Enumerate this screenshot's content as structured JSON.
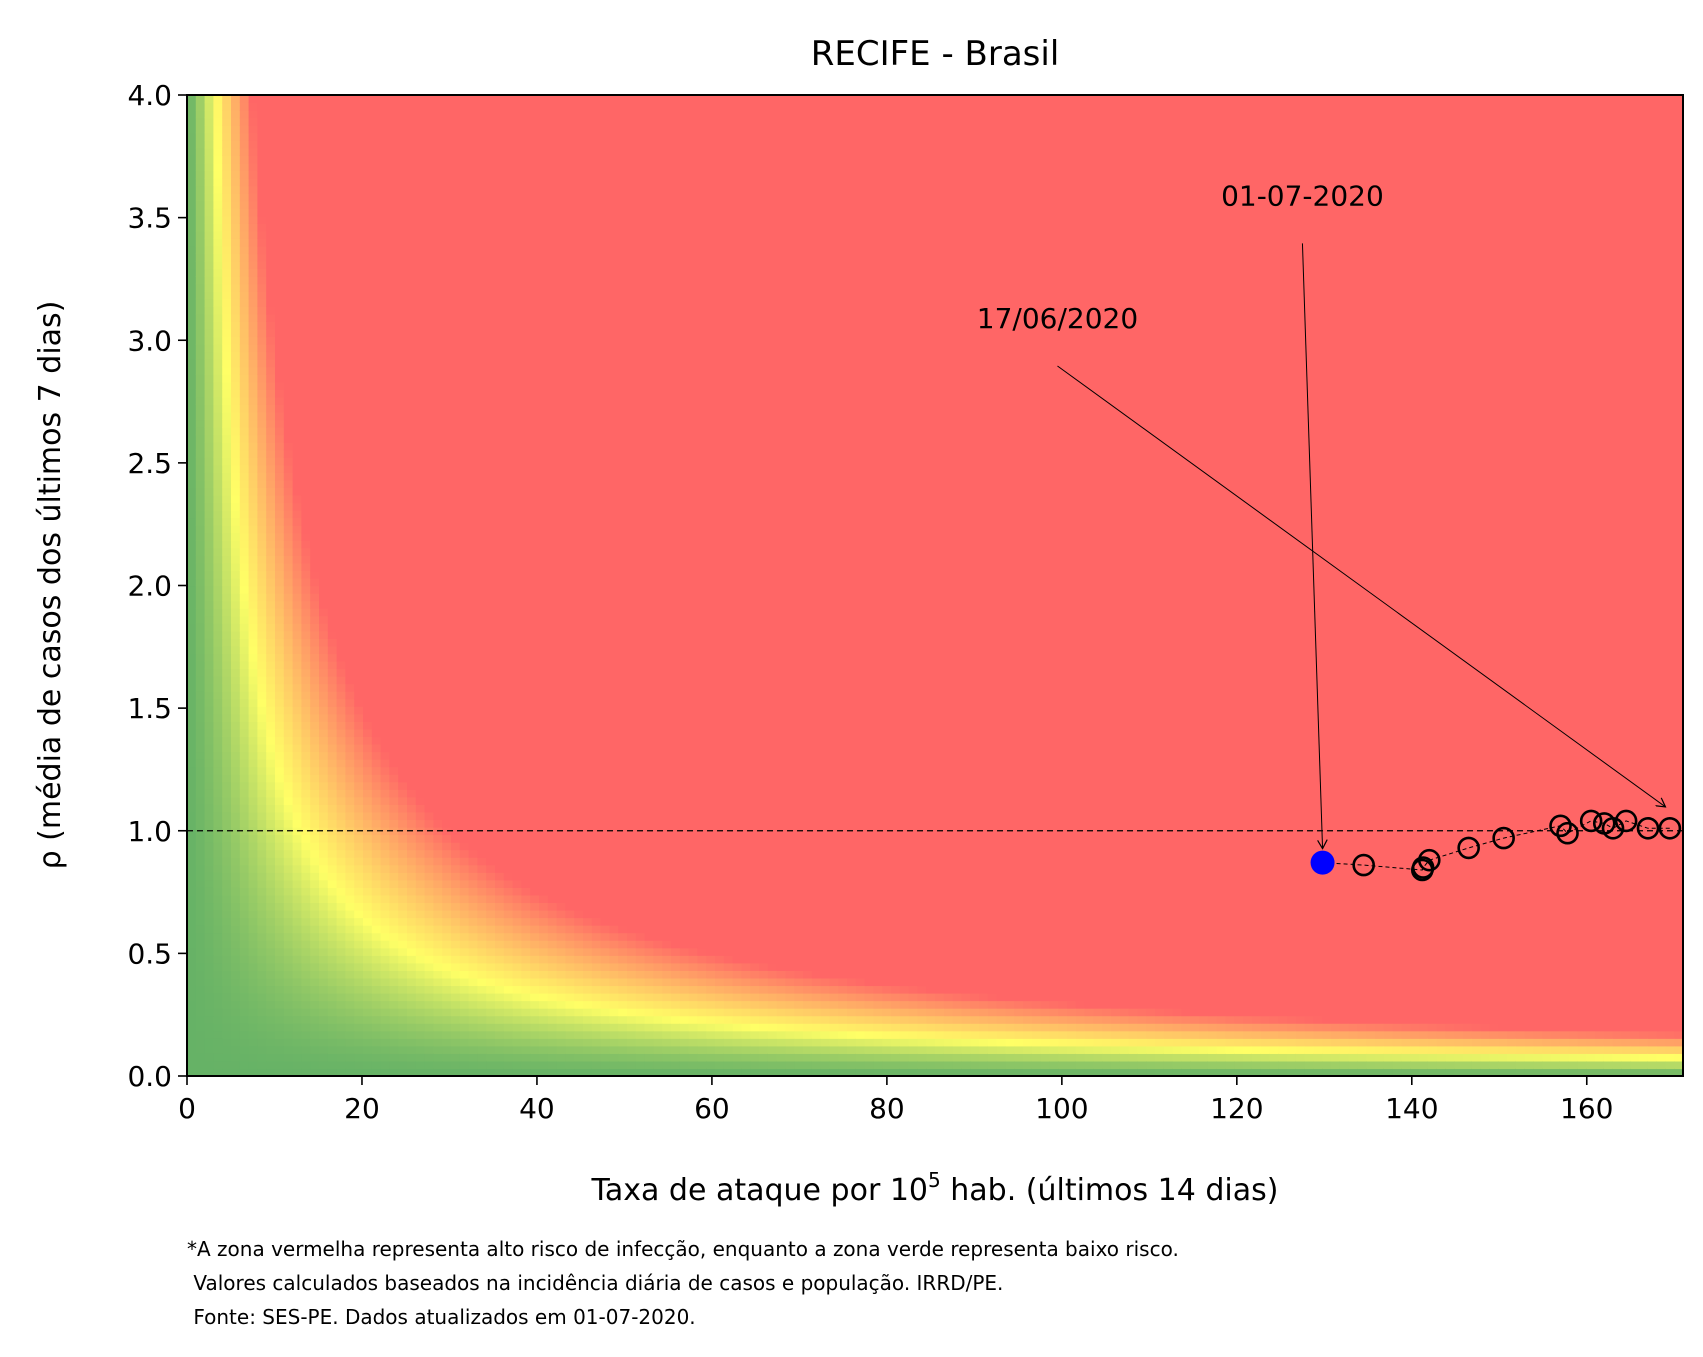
{
  "chart_data": {
    "type": "scatter",
    "title": "RECIFE - Brasil",
    "xlabel_prefix": "Taxa de ataque por 10",
    "xlabel_sup": "5",
    "xlabel_suffix": " hab. (últimos 14 dias)",
    "ylabel": "ρ (média de casos dos últimos 7 dias)",
    "xlim": [
      0,
      171
    ],
    "ylim": [
      0,
      4.0
    ],
    "xticks": [
      0,
      20,
      40,
      60,
      80,
      100,
      120,
      140,
      160
    ],
    "xtick_labels": [
      "0",
      "20",
      "40",
      "60",
      "80",
      "100",
      "120",
      "140",
      "160"
    ],
    "yticks": [
      0.0,
      0.5,
      1.0,
      1.5,
      2.0,
      2.5,
      3.0,
      3.5,
      4.0
    ],
    "ytick_labels": [
      "0.0",
      "0.5",
      "1.0",
      "1.5",
      "2.0",
      "2.5",
      "3.0",
      "3.5",
      "4.0"
    ],
    "reference_line_y": 1.0,
    "background": {
      "description_colors": {
        "green": "#66b266",
        "yellow": "#ffff66",
        "red": "#ff6666"
      },
      "yellow_band_product": 13,
      "red_start_product": 30
    },
    "series": [
      {
        "marker": "open-circle",
        "color": "#000000",
        "points": [
          {
            "x": 169.5,
            "y": 1.01
          },
          {
            "x": 167.0,
            "y": 1.01
          },
          {
            "x": 164.5,
            "y": 1.04
          },
          {
            "x": 163.0,
            "y": 1.01
          },
          {
            "x": 162.0,
            "y": 1.03
          },
          {
            "x": 160.5,
            "y": 1.04
          },
          {
            "x": 157.8,
            "y": 0.99
          },
          {
            "x": 157.0,
            "y": 1.02
          },
          {
            "x": 150.5,
            "y": 0.97
          },
          {
            "x": 146.5,
            "y": 0.93
          },
          {
            "x": 142.0,
            "y": 0.88
          },
          {
            "x": 141.2,
            "y": 0.84
          },
          {
            "x": 141.3,
            "y": 0.85
          },
          {
            "x": 134.5,
            "y": 0.86
          }
        ]
      },
      {
        "marker": "filled-circle",
        "color": "#0000ff",
        "points": [
          {
            "x": 129.8,
            "y": 0.87
          }
        ]
      }
    ],
    "annotations": [
      {
        "text": "01-07-2020",
        "text_x": 127.5,
        "text_y": 3.55,
        "target_x": 129.8,
        "target_y": 0.87
      },
      {
        "text": "17/06/2020",
        "text_x": 99.5,
        "text_y": 3.05,
        "target_x": 169.0,
        "target_y": 1.04
      }
    ],
    "footnote": [
      "*A zona vermelha representa alto risco de infecção, enquanto a zona verde representa baixo risco.",
      " Valores calculados baseados na incidência diária de casos e população. IRRD/PE.",
      " Fonte: SES-PE. Dados atualizados em 01-07-2020."
    ]
  }
}
